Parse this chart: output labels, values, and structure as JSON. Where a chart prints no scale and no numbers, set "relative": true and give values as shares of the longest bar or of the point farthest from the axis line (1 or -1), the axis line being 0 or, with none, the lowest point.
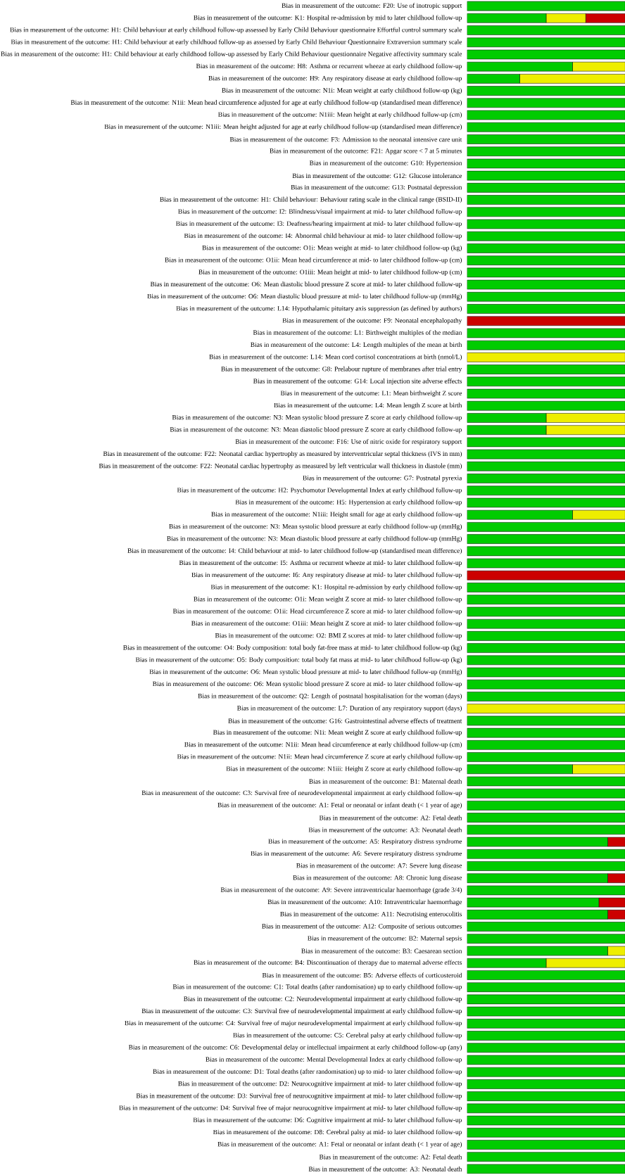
{
  "chart_data": {
    "type": "bar",
    "orientation": "horizontal",
    "stacked": true,
    "relative": true,
    "categories": [
      "Bias in measurement of the outcome: F20: Use of inotropic support",
      "Bias in measurement of the outcome: K1: Hospital re-admission by mid to later childhood follow-up",
      "Bias in measurement of the outcome: H1: Child behaviour at early childhood follow-up assessed by Early Child Behaviour questionnaire Effortful control summary scale",
      "Bias in measurement of the outcome: H1: Child behaviour at early childhood follow-up as assessed by Early Child Behaviour Questionnaire Extraversion summary scale",
      "Bias in measurement of the outcome: H1: Child behaviour at early childhood follow-up assessed by Early Child Behaviour questionnaire Negative affectivity summary scale",
      "Bias in measurement of the outcome: H8: Asthma or recurrent wheeze at early childhood follow-up",
      "Bias in measurement of the outcome: H9: Any respiratory disease at early childhood follow-up",
      "Bias in measurement of the outcome: N1i: Mean weight at early childhood follow-up (kg)",
      "Bias in measurement of the outcome: N1ii: Mean head circumference adjusted for age at early childhood follow-up (standardised mean difference)",
      "Bias in measurement of the outcome: N1iii: Mean height at early childhood follow-up (cm)",
      "Bias in measurement of the outcome: N1iii: Mean height adjusted for age at early childhood follow-up (standardised mean difference)",
      "Bias in measurement of the outcome: F3: Admission to the neonatal intensive care unit",
      "Bias in measurement of the outcome: F21: Apgar score < 7 at 5 minutes",
      "Bias in measurement of the outcome: G10: Hypertension",
      "Bias in measurement of the outcome: G12: Glucose intolerance",
      "Bias in measurement of the outcome: G13: Postnatal depression",
      "Bias in measurement of the outcome: H1: Child behaviour: Behaviour rating scale in the clinical range (BSID-II)",
      "Bias in measurement of the outcome: I2: Blindness/visual impairment at mid- to later childhood follow-up",
      "Bias in measurement of the outcome: I3: Deafness/hearing impairment at mid- to later childhood follow-up",
      "Bias in measurement of the outcome: I4: Abnormal child behaviour at mid- to later childhood follow-up",
      "Bias in measurement of the outcome: O1i: Mean weight at mid- to later childhood follow-up (kg)",
      "Bias in measurement of the outcome: O1ii: Mean head circumference at mid- to later childhood follow-up (cm)",
      "Bias in measurement of the outcome: O1iii: Mean height at mid- to later childhood follow-up (cm)",
      "Bias in measurement of the outcome: O6: Mean diastolic blood pressure Z score at mid- to later childhood follow-up",
      "Bias in measurement of the outcome: O6: Mean diastolic blood pressure at mid- to later childhood follow-up (mmHg)",
      "Bias in measurement of the outcome: L14: Hypothalamic pituitary axis suppression (as defined by authors)",
      "Bias in measurement of the outcome: F9: Neonatal encephalopathy",
      "Bias in measurement of the outcome: L1: Birthweight multiples of the median",
      "Bias in measurement of the outcome: L4: Length multiples of the mean at birth",
      "Bias in measurement of the outcome: L14: Mean cord cortisol concentrations at birth (nmol/L)",
      "Bias in measurement of the outcome: G8: Prelabour rupture of membranes after trial entry",
      "Bias in measurement of the outcome: G14: Local injection site adverse effects",
      "Bias in measurement of the outcome: L1: Mean birthweight Z score",
      "Bias in measurement of the outcome: L4: Mean length Z score at birth",
      "Bias in measurement of the outcome: N3: Mean systolic blood pressure Z score at early childhood follow-up",
      "Bias in measurement of the outcome: N3: Mean diastolic blood pressure Z score at early childhood follow-up",
      "Bias in measurement of the outcome: F16: Use of nitric oxide for respiratory support",
      "Bias in measurement of the outcome: F22: Neonatal cardiac hypertrophy as measured by interventricular septal thickness (IVS in mm)",
      "Bias in measurement of the outcome: F22: Neonatal cardiac hypertrophy as measured by left ventricular wall thickness in diastole (mm)",
      "Bias in measurement of the outcome: G7: Postnatal pyrexia",
      "Bias in measurement of the outcome: H2: Psychomotor Developmental Index at early childhood follow-up",
      "Bias in measurement of the outcome: H5: Hypertension at early childhood follow-up",
      "Bias in measurement of the outcome: N1iii: Height small for age at early childhood follow-up",
      "Bias in measurement of the outcome: N3: Mean systolic blood pressure at early childhood follow-up (mmHg)",
      "Bias in measurement of the outcome: N3: Mean diastolic blood pressure at early childhood follow-up (mmHg)",
      "Bias in measurement of the outcome: I4: Child behaviour at mid- to later childhood follow-up (standardised mean difference)",
      "Bias in measurement of the outcome: I5: Asthma or recurrent wheeze at mid- to later childhood follow-up",
      "Bias in measurement of the outcome: I6: Any respiratory disease at mid- to later childhood follow-up",
      "Bias in measurement of the outcome: K1: Hospital re-admission by early childhood follow-up",
      "Bias in measurement of the outcome: O1i: Mean weight Z score at mid- to later childhood follow-up",
      "Bias in measurement of the outcome: O1ii: Head circumference Z score at mid- to later childhood follow-up",
      "Bias in measurement of the outcome: O1iii: Mean height Z score at mid- to later childhood follow-up",
      "Bias in measurement of the outcome: O2: BMI Z scores at mid- to later childhood follow-up",
      "Bias in measurement of the outcome: O4: Body composition: total body fat-free mass at mid- to later childhood follow-up (kg)",
      "Bias in measurement of the outcome: O5: Body composition: total body fat mass at mid- to later childhood follow-up (kg)",
      "Bias in measurement of the outcome: O6: Mean systolic blood pressure at mid- to later childhood follow-up (mmHg)",
      "Bias in measurement of the outcome: O6: Mean systolic blood pressure Z score at mid- to later childhood follow-up",
      "Bias in measurement of the outcome: Q2: Length of postnatal hospitalisation for the woman (days)",
      "Bias in measurement of the outcome: L7: Duration of any respiratory support (days)",
      "Bias in measurement of the outcome: G16: Gastrointestinal adverse effects of treatment",
      "Bias in measurement of the outcome: N1i: Mean weight Z score at early childhood follow-up",
      "Bias in measurement of the outcome: N1ii: Mean head circumference at early childhood follow-up (cm)",
      "Bias in measurement of the outcome: N1ii: Mean head circumference Z score at early childhood follow-up",
      "Bias in measurement of the outcome: N1iii: Height Z score at early childhood follow-up",
      "Bias in measurement of the outcome: B1: Maternal death",
      "Bias in measurement of the outcome: C3: Survival free of neurodevelopmental impairment at early childhood follow-up",
      "Bias in measurement of the outcome: A1: Fetal or neonatal or infant death (< 1 year of age)",
      "Bias in measurement of the outcome: A2: Fetal death",
      "Bias in measurement of the outcome: A3: Neonatal death",
      "Bias in measurement of the outcome: A5: Respiratory distress syndrome",
      "Bias in measurement of the outcome: A6: Severe respiratory distress syndrome",
      "Bias in measurement of the outcome: A7: Severe lung disease",
      "Bias in measurement of the outcome: A8: Chronic lung disease",
      "Bias in measurement of the outcome: A9: Severe intraventricular haemorrhage (grade 3/4)",
      "Bias in measurement of the outcome: A10: Intraventricular haemorrhage",
      "Bias in measurement of the outcome: A11: Necrotising enterocolitis",
      "Bias in measurement of the outcome: A12: Composite of serious outcomes",
      "Bias in measurement of the outcome: B2: Maternal sepsis",
      "Bias in measurement of the outcome: B3: Caesarean section",
      "Bias in measurement of the outcome: B4: Discontinuation of therapy due to maternal adverse effects",
      "Bias in measurement of the outcome: B5: Adverse effects of corticosteroid",
      "Bias in measurement of the outcome: C1: Total deaths (after randomisation) up to early childhood follow-up",
      "Bias in measurement of the outcome: C2: Neurodevelopmental impairment at early childhood follow-up",
      "Bias in measurement of the outcome: C3: Survival free of neurodevelopmental impairment at early childhood follow-up",
      "Bias in measurement of the outcome: C4: Survival free of major neurodevelopmental impairment at early childhood follow-up",
      "Bias in measurement of the outcome: C5: Cerebral palsy at early childhood follow-up",
      "Bias in measurement of the outcome: C6: Developmental delay or intellectual impairment at early childhood follow-up (any)",
      "Bias in measurement of the outcome: Mental Developmental Index at early childhood follow-up",
      "Bias in measurement of the outcome: D1: Total deaths (after randomisation) up to mid- to later childhood follow-up",
      "Bias in measurement of the outcome: D2: Neurocognitive impairment at mid- to later childhood follow-up",
      "Bias in measurement of the outcome: D3: Survival free of neurocognitive impairment at mid- to later childhood follow-up",
      "Bias in measurement of the outcome: D4: Survival free of major neurocognitive impairment at mid- to later childhood follow-up",
      "Bias in measurement of the outcome: D6: Cognitive impairment at mid- to later childhood follow-up",
      "Bias in measurement of the outcome: D8: Cerebral palsy at mid- to later childhood follow-up",
      "Bias in measurement of the outcome: A1: Fetal or neonatal or infant death (< 1 year of age)",
      "Bias in measurement of the outcome: A2: Fetal death",
      "Bias in measurement of the outcome: A3: Neonatal death"
    ],
    "series": [
      {
        "color": "#00cc00",
        "values": [
          1,
          0.5,
          1,
          1,
          1,
          0.667,
          0.333,
          1,
          1,
          1,
          1,
          1,
          1,
          1,
          1,
          1,
          1,
          1,
          1,
          1,
          1,
          1,
          1,
          1,
          1,
          1,
          0,
          1,
          1,
          0,
          1,
          1,
          1,
          1,
          0.5,
          0.5,
          1,
          1,
          1,
          1,
          1,
          1,
          0.667,
          1,
          1,
          1,
          1,
          0,
          1,
          1,
          1,
          1,
          1,
          1,
          1,
          1,
          1,
          1,
          0,
          1,
          1,
          1,
          1,
          0.667,
          1,
          1,
          1,
          1,
          1,
          0.889,
          1,
          1,
          0.889,
          1,
          0.833,
          0.889,
          1,
          1,
          0.889,
          0.5,
          1,
          1,
          1,
          1,
          1,
          1,
          1,
          1,
          1,
          1,
          1,
          1,
          1,
          1,
          1,
          1,
          1
        ]
      },
      {
        "color": "#eeee00",
        "values": [
          0,
          0.25,
          0,
          0,
          0,
          0.333,
          0.667,
          0,
          0,
          0,
          0,
          0,
          0,
          0,
          0,
          0,
          0,
          0,
          0,
          0,
          0,
          0,
          0,
          0,
          0,
          0,
          0,
          0,
          0,
          1,
          0,
          0,
          0,
          0,
          0.5,
          0.5,
          0,
          0,
          0,
          0,
          0,
          0,
          0.333,
          0,
          0,
          0,
          0,
          0,
          0,
          0,
          0,
          0,
          0,
          0,
          0,
          0,
          0,
          0,
          1,
          0,
          0,
          0,
          0,
          0.333,
          0,
          0,
          0,
          0,
          0,
          0,
          0,
          0,
          0,
          0,
          0,
          0,
          0,
          0,
          0.111,
          0.5,
          0,
          0,
          0,
          0,
          0,
          0,
          0,
          0,
          0,
          0,
          0,
          0,
          0,
          0,
          0,
          0,
          0
        ]
      },
      {
        "color": "#cc0000",
        "values": [
          0,
          0.25,
          0,
          0,
          0,
          0,
          0,
          0,
          0,
          0,
          0,
          0,
          0,
          0,
          0,
          0,
          0,
          0,
          0,
          0,
          0,
          0,
          0,
          0,
          0,
          0,
          1,
          0,
          0,
          0,
          0,
          0,
          0,
          0,
          0,
          0,
          0,
          0,
          0,
          0,
          0,
          0,
          0,
          0,
          0,
          0,
          0,
          1,
          0,
          0,
          0,
          0,
          0,
          0,
          0,
          0,
          0,
          0,
          0,
          0,
          0,
          0,
          0,
          0,
          0,
          0,
          0,
          0,
          0,
          0.111,
          0,
          0,
          0.111,
          0,
          0.167,
          0.111,
          0,
          0,
          0,
          0,
          0,
          0,
          0,
          0,
          0,
          0,
          0,
          0,
          0,
          0,
          0,
          0,
          0,
          0,
          0,
          0,
          0
        ]
      }
    ]
  }
}
